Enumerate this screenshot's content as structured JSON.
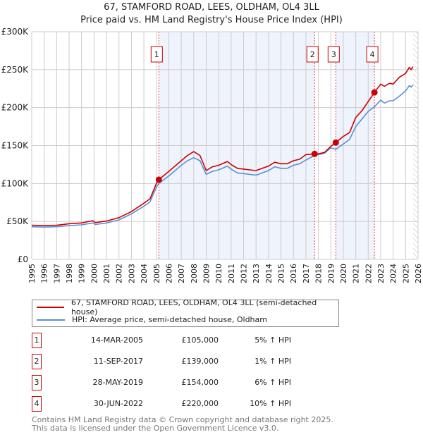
{
  "title_line1": "67, STAMFORD ROAD, LEES, OLDHAM, OL4 3LL",
  "title_line2": "Price paid vs. HM Land Registry's House Price Index (HPI)",
  "legend": {
    "property": "67, STAMFORD ROAD, LEES, OLDHAM, OL4 3LL (semi-detached house)",
    "hpi": "HPI: Average price, semi-detached house, Oldham"
  },
  "colors": {
    "property": "#cc0000",
    "hpi": "#5b8fd6",
    "shade": "#eef3fc",
    "grid": "#cccccc"
  },
  "sales": [
    {
      "num": "1",
      "date": "14-MAR-2005",
      "price": "£105,000",
      "hpi": "5% ↑ HPI",
      "x": 2005.2,
      "y": 105
    },
    {
      "num": "2",
      "date": "11-SEP-2017",
      "price": "£139,000",
      "hpi": "1% ↑ HPI",
      "x": 2017.7,
      "y": 139
    },
    {
      "num": "3",
      "date": "28-MAY-2019",
      "price": "£154,000",
      "hpi": "6% ↑ HPI",
      "x": 2019.4,
      "y": 154
    },
    {
      "num": "4",
      "date": "30-JUN-2022",
      "price": "£220,000",
      "hpi": "10% ↑ HPI",
      "x": 2022.5,
      "y": 220
    }
  ],
  "footer_line1": "Contains HM Land Registry data © Crown copyright and database right 2025.",
  "footer_line2": "This data is licensed under the Open Government Licence v3.0.",
  "chart_data": {
    "type": "line",
    "title": "67, STAMFORD ROAD, LEES, OLDHAM, OL4 3LL — Price paid vs. HM Land Registry's House Price Index (HPI)",
    "xlim": [
      1995,
      2026
    ],
    "ylim": [
      0,
      300
    ],
    "x_ticks": [
      "1995",
      "1996",
      "1997",
      "1998",
      "1999",
      "2000",
      "2001",
      "2002",
      "2003",
      "2004",
      "2005",
      "2006",
      "2007",
      "2008",
      "2009",
      "2010",
      "2011",
      "2012",
      "2013",
      "2014",
      "2015",
      "2016",
      "2017",
      "2018",
      "2019",
      "2020",
      "2021",
      "2022",
      "2023",
      "2024",
      "2025",
      "2026"
    ],
    "y_ticks": [
      {
        "v": 0,
        "label": "£0"
      },
      {
        "v": 50,
        "label": "£50K"
      },
      {
        "v": 100,
        "label": "£100K"
      },
      {
        "v": 150,
        "label": "£150K"
      },
      {
        "v": 200,
        "label": "£200K"
      },
      {
        "v": 250,
        "label": "£250K"
      },
      {
        "v": 300,
        "label": "£300K"
      }
    ],
    "shaded_ranges": [
      [
        2005.2,
        2017.7
      ],
      [
        2019.4,
        2022.5
      ]
    ],
    "forecast_from": 2025.6,
    "x": [
      1995,
      1996,
      1997,
      1998,
      1999,
      1999.9,
      2000.1,
      2001,
      2002,
      2003,
      2004,
      2004.5,
      2005,
      2005.2,
      2006,
      2007,
      2007.5,
      2008,
      2008.5,
      2009,
      2009.5,
      2010,
      2010.7,
      2011,
      2011.5,
      2012,
      2012.5,
      2013,
      2013.5,
      2014,
      2014.5,
      2015,
      2015.5,
      2016,
      2016.5,
      2017,
      2017.7,
      2018,
      2018.5,
      2019,
      2019.4,
      2020,
      2020.5,
      2021,
      2021.5,
      2022,
      2022.5,
      2023,
      2023.3,
      2023.7,
      2024,
      2024.5,
      2025,
      2025.3,
      2025.45,
      2025.6
    ],
    "series": [
      {
        "name": "67, STAMFORD ROAD, LEES, OLDHAM, OL4 3LL (semi-detached house)",
        "values": [
          45,
          44.5,
          45,
          47,
          48,
          51,
          48.5,
          50.5,
          55,
          63,
          74,
          80,
          100,
          105,
          116,
          130,
          137,
          142,
          137,
          117,
          122,
          124,
          129,
          125,
          120,
          119,
          118,
          117,
          120,
          123,
          128,
          126,
          126,
          130,
          132,
          138,
          139,
          139,
          141,
          149,
          154,
          162,
          167,
          187,
          196,
          208,
          220,
          231,
          228,
          232,
          231,
          240,
          245,
          253,
          250,
          254
        ]
      },
      {
        "name": "HPI: Average price, semi-detached house, Oldham",
        "values": [
          43,
          42.5,
          43,
          44.5,
          45.5,
          48,
          46,
          48,
          52,
          60,
          70,
          76,
          95,
          100,
          110,
          124,
          130,
          134,
          130,
          112,
          116,
          118,
          123,
          119,
          114,
          113,
          112,
          111,
          114,
          117,
          122,
          120,
          120,
          124,
          126,
          131,
          137,
          138,
          140,
          147,
          145,
          152,
          158,
          175,
          185,
          195,
          201,
          210,
          206,
          209,
          209,
          215,
          222,
          229,
          227,
          230
        ]
      }
    ]
  }
}
